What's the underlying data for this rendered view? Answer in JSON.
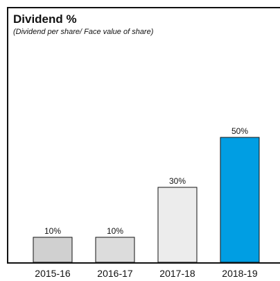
{
  "chart_data": {
    "type": "bar",
    "title": "Dividend %",
    "subtitle": "(Dividend per share/ Face value of share)",
    "categories": [
      "2015-16",
      "2016-17",
      "2017-18",
      "2018-19"
    ],
    "values": [
      10,
      10,
      30,
      50
    ],
    "value_labels": [
      "10%",
      "10%",
      "30%",
      "50%"
    ],
    "ylim": [
      0,
      60
    ],
    "grid": false,
    "legend": "none",
    "colors": [
      "#d0d0d0",
      "#dcdcdc",
      "#ececec",
      "#009ee3"
    ],
    "bar_stroke": "#111111"
  }
}
